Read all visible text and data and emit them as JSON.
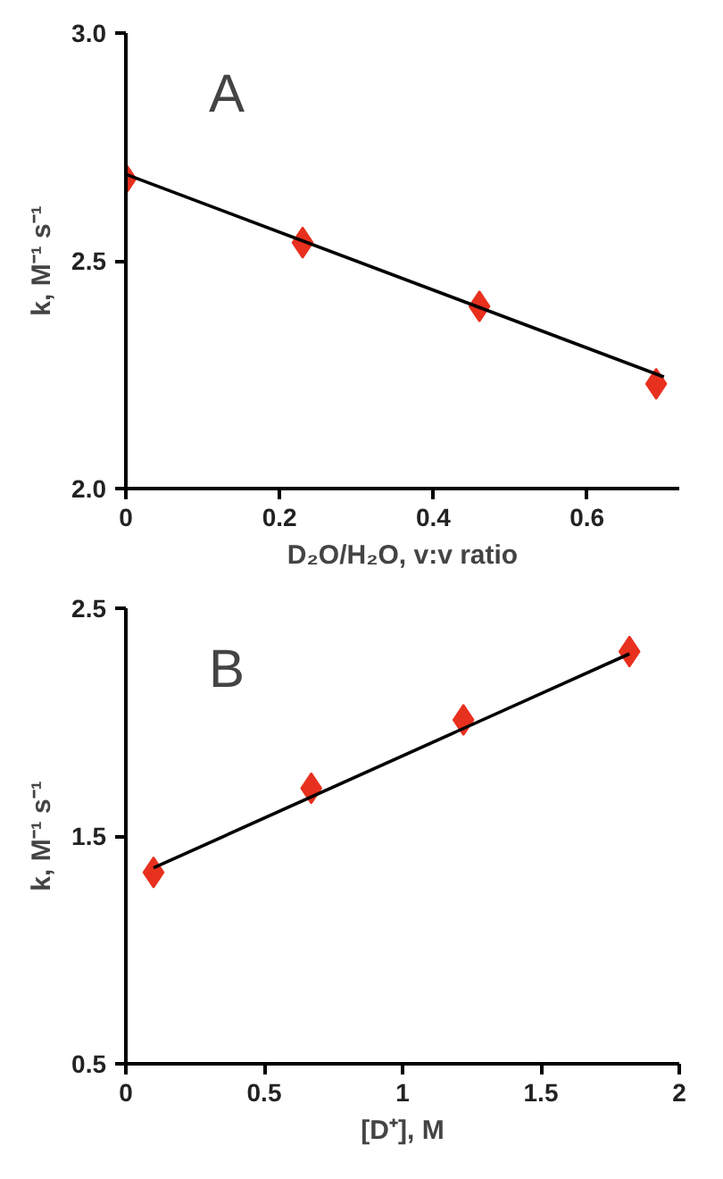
{
  "chart_data": [
    {
      "type": "scatter",
      "title": "A",
      "xlabel": "D₂O/H₂O, v:v ratio",
      "ylabel": "k, M⁻¹ s⁻¹",
      "x": [
        0,
        0.23,
        0.46,
        0.69
      ],
      "series": [
        {
          "color": "#e8301e",
          "values": [
            2.68,
            2.54,
            2.4,
            2.23
          ],
          "marker": "diamond"
        },
        {
          "type": "line",
          "color": "#000000",
          "x": [
            0,
            0.7
          ],
          "values": [
            2.69,
            2.245
          ],
          "marker": "none"
        }
      ],
      "xlim": [
        0,
        0.72
      ],
      "ylim": [
        2.0,
        3.0
      ],
      "xticks": [
        0,
        0.2,
        0.4,
        0.6
      ],
      "yticks": [
        {
          "value": 2,
          "label": "2.0"
        },
        2.5,
        {
          "value": 3,
          "label": "3.0"
        }
      ],
      "grid": false
    },
    {
      "type": "scatter",
      "title": "B",
      "xlabel": "[D⁺], M",
      "ylabel": "k, M⁻¹ s⁻¹",
      "x": [
        0.1,
        0.67,
        1.22,
        1.82
      ],
      "series": [
        {
          "color": "#e8301e",
          "values": [
            1.34,
            1.71,
            2.01,
            2.31
          ],
          "marker": "diamond"
        },
        {
          "type": "line",
          "color": "#000000",
          "x": [
            0.1,
            1.82
          ],
          "values": [
            1.36,
            2.3
          ],
          "marker": "none"
        }
      ],
      "xlim": [
        0,
        2
      ],
      "ylim": [
        0.5,
        2.5
      ],
      "xticks": [
        0,
        0.5,
        1,
        1.5,
        2
      ],
      "yticks": [
        0.5,
        1.5,
        2.5
      ],
      "grid": false
    }
  ]
}
